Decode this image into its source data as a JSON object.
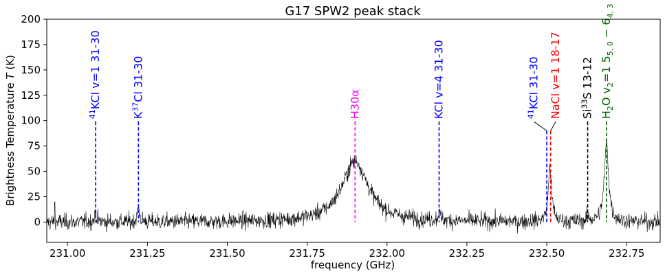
{
  "chart_data": {
    "type": "line",
    "title": "G17 SPW2 peak stack",
    "xlabel": "frequency (GHz)",
    "ylabel": "Brightness Temperature T (K)",
    "xlim": [
      230.935,
      232.855
    ],
    "ylim": [
      -20,
      200
    ],
    "grid": false,
    "x_ticks": [
      231.0,
      231.25,
      231.5,
      231.75,
      232.0,
      232.25,
      232.5,
      232.75
    ],
    "x_tick_labels": [
      "231.00",
      "231.25",
      "231.50",
      "231.75",
      "232.00",
      "232.25",
      "232.50",
      "232.75"
    ],
    "y_ticks": [
      0,
      25,
      50,
      75,
      100,
      125,
      150,
      175,
      200
    ],
    "y_tick_labels": [
      "0",
      "25",
      "50",
      "75",
      "100",
      "125",
      "150",
      "175",
      "200"
    ],
    "series": [
      {
        "color": "#000000",
        "noise_sigma_K": 4,
        "spikes": [
          {
            "freq": 230.96,
            "value": 20
          }
        ],
        "peaks": [
          {
            "freq": 231.088,
            "value": 8,
            "width_ghz": 0.004
          },
          {
            "freq": 231.222,
            "value": 14,
            "width_ghz": 0.004
          },
          {
            "freq": 231.9,
            "value": 60,
            "width_ghz": 0.05
          },
          {
            "freq": 232.163,
            "value": 10,
            "width_ghz": 0.003
          },
          {
            "freq": 232.51,
            "value": 55,
            "width_ghz": 0.006
          },
          {
            "freq": 232.63,
            "value": 4,
            "width_ghz": 0.004
          },
          {
            "freq": 232.687,
            "value": 78,
            "width_ghz": 0.008
          }
        ]
      }
    ],
    "line_ids": [
      {
        "freq": 231.088,
        "top": 99,
        "color": "#0000ff",
        "style": "dashed",
        "label_parts": [
          {
            "t": "41",
            "sup": true
          },
          {
            "t": "KCl v=1 31-30"
          }
        ]
      },
      {
        "freq": 231.222,
        "top": 99,
        "color": "#0000ff",
        "style": "dashed",
        "label_parts": [
          {
            "t": "K"
          },
          {
            "t": "37",
            "sup": true
          },
          {
            "t": "Cl 31-30"
          }
        ]
      },
      {
        "freq": 231.9,
        "top": 99,
        "color": "#ff00ff",
        "style": "dashed",
        "label_parts": [
          {
            "t": "H30α"
          }
        ]
      },
      {
        "freq": 232.163,
        "top": 99,
        "color": "#0000ff",
        "style": "dashed",
        "label_parts": [
          {
            "t": "KCl v=4 31-30"
          }
        ]
      },
      {
        "freq": 232.5,
        "top": 90,
        "color": "#0000ff",
        "style": "dashed",
        "leader_to_freq": 232.46,
        "leader_top": 99,
        "label_parts": [
          {
            "t": "41",
            "sup": true
          },
          {
            "t": "KCl 31-30"
          }
        ]
      },
      {
        "freq": 232.512,
        "top": 90,
        "color": "#ff0000",
        "style": "dashed",
        "leader_to_freq": 232.528,
        "leader_top": 99,
        "label_parts": [
          {
            "t": "NaCl v=1 18-17"
          }
        ]
      },
      {
        "freq": 232.628,
        "top": 99,
        "color": "#000000",
        "style": "dashed",
        "label_parts": [
          {
            "t": "Si"
          },
          {
            "t": "33",
            "sup": true
          },
          {
            "t": "S 13-12"
          }
        ]
      },
      {
        "freq": 232.687,
        "top": 99,
        "color": "#006400",
        "style": "dashed",
        "label_parts": [
          {
            "t": "H"
          },
          {
            "t": "2",
            "sub": true
          },
          {
            "t": "O v"
          },
          {
            "t": "2",
            "sub": true
          },
          {
            "t": "=1 5"
          },
          {
            "t": "5, 0",
            "sub": true
          },
          {
            "t": " − 6"
          },
          {
            "t": "4, 3",
            "sub": true
          }
        ]
      }
    ]
  }
}
